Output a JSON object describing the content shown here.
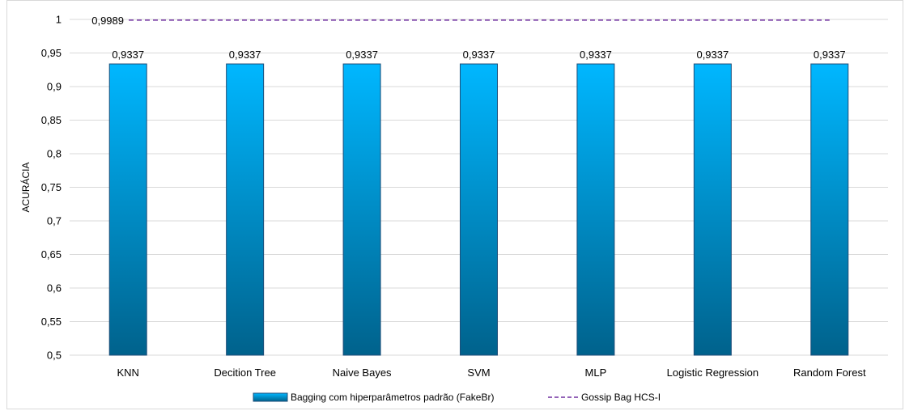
{
  "chart_data": {
    "type": "bar",
    "categories": [
      "KNN",
      "Decition Tree",
      "Naive Bayes",
      "SVM",
      "MLP",
      "Logistic Regression",
      "Random Forest"
    ],
    "series": [
      {
        "name": "Bagging com hiperparâmetros padrão (FakeBr)",
        "type": "bar",
        "values": [
          0.9337,
          0.9337,
          0.9337,
          0.9337,
          0.9337,
          0.9337,
          0.9337
        ],
        "data_labels": [
          "0,9337",
          "0,9337",
          "0,9337",
          "0,9337",
          "0,9337",
          "0,9337",
          "0,9337"
        ],
        "color_top": "#00b7ff",
        "color_bottom": "#00628c",
        "border_color": "#1f4e79"
      },
      {
        "name": "Gossip Bag HCS-I",
        "type": "line",
        "style": "dashed",
        "value": 0.9989,
        "data_label": "0,9989",
        "color": "#7030a0"
      }
    ],
    "title": "",
    "xlabel": "",
    "ylabel": "ACURÁCIA",
    "ylim": [
      0.5,
      1
    ],
    "yticks": [
      0.5,
      0.55,
      0.6,
      0.65,
      0.7,
      0.75,
      0.8,
      0.85,
      0.9,
      0.95,
      1
    ],
    "ytick_labels": [
      "0,5",
      "0,55",
      "0,6",
      "0,65",
      "0,7",
      "0,75",
      "0,8",
      "0,85",
      "0,9",
      "0,95",
      "1"
    ],
    "grid": true,
    "grid_color": "#d9d9d9",
    "legend_position": "bottom"
  }
}
